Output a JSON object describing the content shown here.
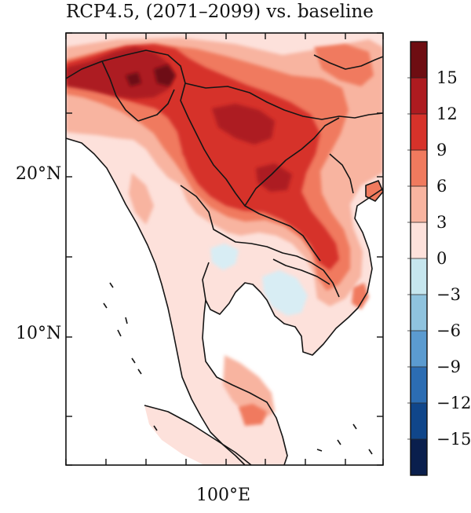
{
  "title": "RCP4.5, (2071–2099) vs. baseline",
  "axes": {
    "y_ticks": [
      {
        "label": "20°N",
        "lat": 20
      },
      {
        "label": "10°N",
        "lat": 10
      }
    ],
    "x_ticks": [
      {
        "label": "100°E",
        "lon": 100
      }
    ]
  },
  "colorbar": {
    "min": -18,
    "max": 18,
    "step": 3,
    "labels": [
      "15",
      "12",
      "9",
      "6",
      "3",
      "0",
      "−3",
      "−6",
      "−9",
      "−12",
      "−15"
    ],
    "colors": [
      "#0a1f4d",
      "#10468a",
      "#2c6db3",
      "#5b9bd0",
      "#8fc3de",
      "#c6e6ee",
      "#fde1db",
      "#f8b4a0",
      "#f07a5e",
      "#d6322a",
      "#ad1b20",
      "#6e0d12"
    ]
  },
  "map_colors": {
    "neg_light": "#d8edf4",
    "pos_0_3": "#fde1db",
    "pos_3_6": "#f8b4a0",
    "pos_6_9": "#f07a5e",
    "pos_9_12": "#d6322a",
    "pos_12_15": "#ad1b20",
    "pos_15_18": "#6e0d12"
  }
}
